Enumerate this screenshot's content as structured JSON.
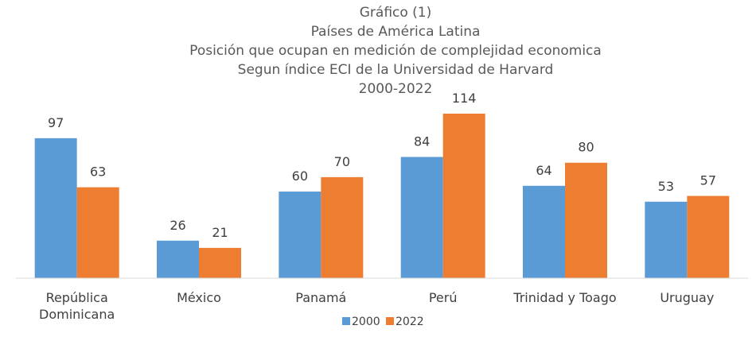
{
  "chart_data": {
    "type": "bar",
    "title_lines": [
      "Gráfico (1)",
      "Países de América Latina",
      "Posición que ocupan en medición de complejidad economica",
      "Segun índice ECI de la Universidad de Harvard",
      "2000-2022"
    ],
    "categories": [
      [
        "República",
        "Dominicana"
      ],
      [
        "México"
      ],
      [
        "Panamá"
      ],
      [
        "Perú"
      ],
      [
        "Trinidad y Toago"
      ],
      [
        "Uruguay"
      ]
    ],
    "series": [
      {
        "name": "2000",
        "color": "#5b9bd5",
        "values": [
          97,
          26,
          60,
          84,
          64,
          53
        ]
      },
      {
        "name": "2022",
        "color": "#ed7d31",
        "values": [
          63,
          21,
          70,
          114,
          80,
          57
        ]
      }
    ],
    "ylim": [
      0,
      114
    ],
    "legend_position": "bottom",
    "grid": false,
    "data_labels": true
  }
}
